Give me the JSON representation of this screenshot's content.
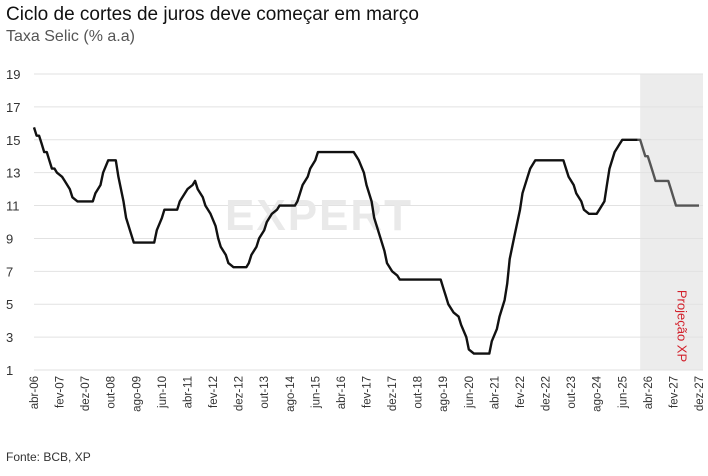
{
  "title": "Ciclo de cortes de juros deve começar em março",
  "subtitle": "Taxa Selic (% a.a)",
  "source": "Fonte: BCB, XP",
  "watermark": "EXPERT",
  "colors": {
    "history": "#111111",
    "projection": "#555555",
    "projection_band": "#ececec",
    "projection_label": "#d21f2a",
    "grid": "#e2e2e2"
  },
  "chart_data": {
    "type": "line",
    "title": "Ciclo de cortes de juros deve começar em março",
    "subtitle": "Taxa Selic (% a.a)",
    "ylim": [
      1,
      19
    ],
    "yticks": [
      1,
      3,
      5,
      7,
      9,
      11,
      13,
      15,
      17,
      19
    ],
    "xlim": [
      "2006-04",
      "2027-12"
    ],
    "xticks": [
      "abr-06",
      "fev-07",
      "dez-07",
      "out-08",
      "ago-09",
      "jun-10",
      "abr-11",
      "fev-12",
      "dez-12",
      "out-13",
      "ago-14",
      "jun-15",
      "abr-16",
      "fev-17",
      "dez-17",
      "out-18",
      "ago-19",
      "jun-20",
      "abr-21",
      "fev-22",
      "dez-22",
      "out-23",
      "ago-24",
      "jun-25",
      "abr-26",
      "fev-27",
      "dez-27"
    ],
    "grid": true,
    "annotation": {
      "text": "Projeção XP",
      "shaded_from": "2026-01",
      "shaded_to": "2027-12"
    },
    "series": [
      {
        "points": [
          [
            "2006-04",
            15.75
          ],
          [
            "2006-05",
            15.25
          ],
          [
            "2006-06",
            15.25
          ],
          [
            "2006-07",
            14.75
          ],
          [
            "2006-08",
            14.25
          ],
          [
            "2006-09",
            14.25
          ],
          [
            "2006-10",
            13.75
          ],
          [
            "2006-11",
            13.25
          ],
          [
            "2006-12",
            13.25
          ],
          [
            "2007-01",
            13.0
          ],
          [
            "2007-03",
            12.75
          ],
          [
            "2007-04",
            12.5
          ],
          [
            "2007-06",
            12.0
          ],
          [
            "2007-07",
            11.5
          ],
          [
            "2007-09",
            11.25
          ],
          [
            "2008-03",
            11.25
          ],
          [
            "2008-04",
            11.75
          ],
          [
            "2008-06",
            12.25
          ],
          [
            "2008-07",
            13.0
          ],
          [
            "2008-09",
            13.75
          ],
          [
            "2008-12",
            13.75
          ],
          [
            "2009-01",
            12.75
          ],
          [
            "2009-03",
            11.25
          ],
          [
            "2009-04",
            10.25
          ],
          [
            "2009-06",
            9.25
          ],
          [
            "2009-07",
            8.75
          ],
          [
            "2010-03",
            8.75
          ],
          [
            "2010-04",
            9.5
          ],
          [
            "2010-06",
            10.25
          ],
          [
            "2010-07",
            10.75
          ],
          [
            "2010-12",
            10.75
          ],
          [
            "2011-01",
            11.25
          ],
          [
            "2011-03",
            11.75
          ],
          [
            "2011-04",
            12.0
          ],
          [
            "2011-06",
            12.25
          ],
          [
            "2011-07",
            12.5
          ],
          [
            "2011-08",
            12.0
          ],
          [
            "2011-10",
            11.5
          ],
          [
            "2011-11",
            11.0
          ],
          [
            "2012-01",
            10.5
          ],
          [
            "2012-03",
            9.75
          ],
          [
            "2012-04",
            9.0
          ],
          [
            "2012-05",
            8.5
          ],
          [
            "2012-07",
            8.0
          ],
          [
            "2012-08",
            7.5
          ],
          [
            "2012-10",
            7.25
          ],
          [
            "2013-03",
            7.25
          ],
          [
            "2013-04",
            7.5
          ],
          [
            "2013-05",
            8.0
          ],
          [
            "2013-07",
            8.5
          ],
          [
            "2013-08",
            9.0
          ],
          [
            "2013-10",
            9.5
          ],
          [
            "2013-11",
            10.0
          ],
          [
            "2014-01",
            10.5
          ],
          [
            "2014-03",
            10.75
          ],
          [
            "2014-04",
            11.0
          ],
          [
            "2014-10",
            11.0
          ],
          [
            "2014-11",
            11.25
          ],
          [
            "2014-12",
            11.75
          ],
          [
            "2015-01",
            12.25
          ],
          [
            "2015-03",
            12.75
          ],
          [
            "2015-04",
            13.25
          ],
          [
            "2015-06",
            13.75
          ],
          [
            "2015-07",
            14.25
          ],
          [
            "2016-09",
            14.25
          ],
          [
            "2016-10",
            14.0
          ],
          [
            "2016-11",
            13.75
          ],
          [
            "2017-01",
            13.0
          ],
          [
            "2017-02",
            12.25
          ],
          [
            "2017-04",
            11.25
          ],
          [
            "2017-05",
            10.25
          ],
          [
            "2017-07",
            9.25
          ],
          [
            "2017-09",
            8.25
          ],
          [
            "2017-10",
            7.5
          ],
          [
            "2017-12",
            7.0
          ],
          [
            "2018-02",
            6.75
          ],
          [
            "2018-03",
            6.5
          ],
          [
            "2019-07",
            6.5
          ],
          [
            "2019-08",
            6.0
          ],
          [
            "2019-09",
            5.5
          ],
          [
            "2019-10",
            5.0
          ],
          [
            "2019-12",
            4.5
          ],
          [
            "2020-02",
            4.25
          ],
          [
            "2020-03",
            3.75
          ],
          [
            "2020-05",
            3.0
          ],
          [
            "2020-06",
            2.25
          ],
          [
            "2020-08",
            2.0
          ],
          [
            "2021-02",
            2.0
          ],
          [
            "2021-03",
            2.75
          ],
          [
            "2021-05",
            3.5
          ],
          [
            "2021-06",
            4.25
          ],
          [
            "2021-08",
            5.25
          ],
          [
            "2021-09",
            6.25
          ],
          [
            "2021-10",
            7.75
          ],
          [
            "2021-12",
            9.25
          ],
          [
            "2022-02",
            10.75
          ],
          [
            "2022-03",
            11.75
          ],
          [
            "2022-05",
            12.75
          ],
          [
            "2022-06",
            13.25
          ],
          [
            "2022-08",
            13.75
          ],
          [
            "2023-07",
            13.75
          ],
          [
            "2023-08",
            13.25
          ],
          [
            "2023-09",
            12.75
          ],
          [
            "2023-11",
            12.25
          ],
          [
            "2023-12",
            11.75
          ],
          [
            "2024-02",
            11.25
          ],
          [
            "2024-03",
            10.75
          ],
          [
            "2024-05",
            10.5
          ],
          [
            "2024-08",
            10.5
          ],
          [
            "2024-09",
            10.75
          ],
          [
            "2024-11",
            11.25
          ],
          [
            "2024-12",
            12.25
          ],
          [
            "2025-01",
            13.25
          ],
          [
            "2025-03",
            14.25
          ],
          [
            "2025-05",
            14.75
          ],
          [
            "2025-06",
            15.0
          ],
          [
            "2025-12",
            15.0
          ]
        ]
      },
      {
        "projection": true,
        "points": [
          [
            "2025-12",
            15.0
          ],
          [
            "2026-01",
            15.0
          ],
          [
            "2026-02",
            14.5
          ],
          [
            "2026-03",
            14.0
          ],
          [
            "2026-04",
            14.0
          ],
          [
            "2026-05",
            13.5
          ],
          [
            "2026-06",
            13.0
          ],
          [
            "2026-07",
            12.5
          ],
          [
            "2026-12",
            12.5
          ],
          [
            "2027-01",
            12.0
          ],
          [
            "2027-02",
            11.5
          ],
          [
            "2027-03",
            11.0
          ],
          [
            "2027-12",
            11.0
          ]
        ]
      }
    ]
  }
}
